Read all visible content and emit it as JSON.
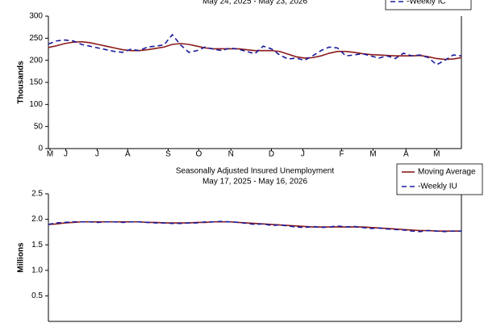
{
  "chart_data": [
    {
      "type": "line",
      "subtitle": "May 24, 2025 - May 23, 2026",
      "ylabel": "Thousands",
      "x": [
        0,
        1,
        2,
        3,
        4,
        5,
        6,
        7,
        8,
        9,
        10,
        11,
        12,
        13,
        14,
        15,
        16,
        17,
        18,
        19,
        20,
        21,
        22,
        23,
        24,
        25,
        26,
        27,
        28,
        29,
        30,
        31,
        32,
        33,
        34,
        35,
        36,
        37,
        38,
        39,
        40,
        41,
        42,
        43,
        44,
        45,
        46,
        47,
        48,
        49,
        50
      ],
      "xlim": [
        0,
        50
      ],
      "xticks": [
        {
          "value": 0.2,
          "label": "M"
        },
        {
          "value": 2.1,
          "label": "J"
        },
        {
          "value": 5.9,
          "label": "J"
        },
        {
          "value": 9.6,
          "label": "A"
        },
        {
          "value": 14.5,
          "label": "S"
        },
        {
          "value": 18.2,
          "label": "O"
        },
        {
          "value": 22.1,
          "label": "N"
        },
        {
          "value": 27,
          "label": "D"
        },
        {
          "value": 30.8,
          "label": "J"
        },
        {
          "value": 35.5,
          "label": "F"
        },
        {
          "value": 39.3,
          "label": "M"
        },
        {
          "value": 43.3,
          "label": "A"
        },
        {
          "value": 47,
          "label": "M"
        }
      ],
      "ylim": [
        0,
        300
      ],
      "yticks": [
        0,
        50,
        100,
        150,
        200,
        250,
        300
      ],
      "legend": "top-right",
      "series": [
        {
          "color": "#8b1a1a",
          "values": [
            229,
            233,
            238,
            241,
            242,
            240,
            236,
            232,
            228,
            224,
            222,
            222,
            224,
            227,
            230,
            236,
            238,
            236,
            232,
            228,
            226,
            226,
            226,
            226,
            224,
            222,
            222,
            222,
            220,
            214,
            208,
            205,
            206,
            210,
            216,
            220,
            220,
            218,
            215,
            213,
            212,
            211,
            210,
            210,
            210,
            211,
            208,
            204,
            202,
            203,
            206
          ]
        },
        {
          "name": "-Weekly IC",
          "color": "#1a1a9c",
          "dashed": true,
          "values": [
            237,
            244,
            246,
            244,
            236,
            232,
            228,
            224,
            220,
            218,
            225,
            222,
            230,
            232,
            235,
            258,
            235,
            218,
            222,
            230,
            225,
            222,
            228,
            225,
            220,
            215,
            232,
            226,
            212,
            203,
            205,
            200,
            210,
            222,
            230,
            228,
            210,
            212,
            215,
            210,
            205,
            210,
            204,
            216,
            210,
            212,
            206,
            190,
            200,
            212,
            210
          ]
        }
      ]
    },
    {
      "type": "line",
      "title": "Seasonally Adjusted Insured Unemployment",
      "subtitle": "May 17, 2025 - May 16, 2026",
      "ylabel": "Millions",
      "x": [
        0,
        1,
        2,
        3,
        4,
        5,
        6,
        7,
        8,
        9,
        10,
        11,
        12,
        13,
        14,
        15,
        16,
        17,
        18,
        19,
        20,
        21,
        22,
        23,
        24,
        25,
        26,
        27,
        28,
        29,
        30,
        31,
        32,
        33,
        34,
        35,
        36,
        37,
        38,
        39,
        40,
        41,
        42,
        43,
        44,
        45,
        46,
        47,
        48,
        49,
        50
      ],
      "xlim": [
        0,
        50
      ],
      "ylim": [
        0,
        2.5
      ],
      "yticks": [
        0.5,
        {
          "value": 1,
          "label": "1.0"
        },
        1.5,
        {
          "value": 2,
          "label": "2.0"
        },
        2.5
      ],
      "legend": "top-right",
      "series": [
        {
          "name": "Moving Average",
          "color": "#8b1a1a",
          "values": [
            1.9,
            1.91,
            1.93,
            1.94,
            1.95,
            1.95,
            1.95,
            1.95,
            1.95,
            1.95,
            1.95,
            1.95,
            1.94,
            1.94,
            1.93,
            1.93,
            1.93,
            1.93,
            1.94,
            1.94,
            1.95,
            1.95,
            1.95,
            1.94,
            1.93,
            1.92,
            1.91,
            1.9,
            1.89,
            1.88,
            1.87,
            1.86,
            1.85,
            1.85,
            1.85,
            1.85,
            1.85,
            1.85,
            1.85,
            1.84,
            1.83,
            1.82,
            1.81,
            1.8,
            1.79,
            1.78,
            1.78,
            1.77,
            1.77,
            1.77,
            1.77
          ]
        },
        {
          "name": "-Weekly IU",
          "color": "#1a1a9c",
          "dashed": true,
          "values": [
            1.9,
            1.93,
            1.94,
            1.95,
            1.95,
            1.95,
            1.94,
            1.95,
            1.95,
            1.94,
            1.95,
            1.95,
            1.94,
            1.93,
            1.93,
            1.92,
            1.92,
            1.93,
            1.93,
            1.95,
            1.95,
            1.96,
            1.95,
            1.94,
            1.92,
            1.9,
            1.91,
            1.88,
            1.89,
            1.87,
            1.85,
            1.84,
            1.86,
            1.84,
            1.85,
            1.87,
            1.85,
            1.86,
            1.84,
            1.82,
            1.83,
            1.81,
            1.8,
            1.79,
            1.77,
            1.76,
            1.78,
            1.77,
            1.76,
            1.77,
            1.77
          ]
        }
      ]
    }
  ]
}
